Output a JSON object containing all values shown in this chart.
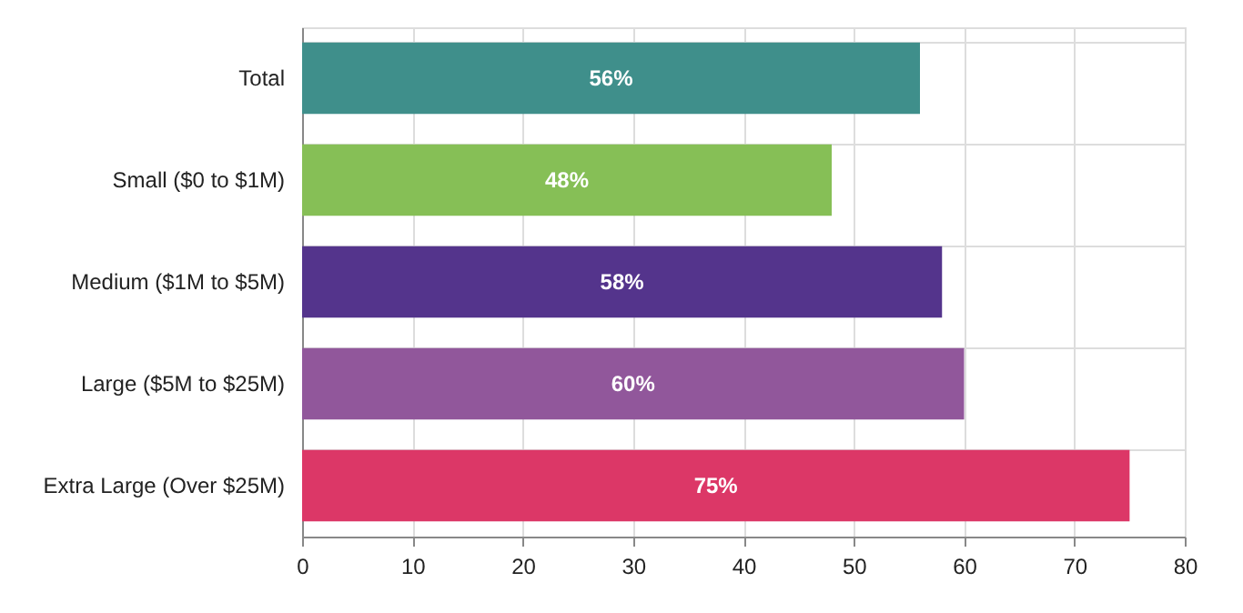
{
  "chart_data": {
    "type": "bar",
    "orientation": "horizontal",
    "categories": [
      "Total",
      "Small ($0 to $1M)",
      "Medium ($1M to $5M)",
      "Large ($5M to $25M)",
      "Extra Large (Over $25M)"
    ],
    "values": [
      56,
      48,
      58,
      60,
      75
    ],
    "colors": [
      "#3f8f8b",
      "#86bf56",
      "#54348c",
      "#91579b",
      "#dc3767"
    ],
    "value_labels": [
      "56%",
      "48%",
      "58%",
      "60%",
      "75%"
    ],
    "xlim": [
      0,
      80
    ],
    "xticks": [
      0,
      10,
      20,
      30,
      40,
      50,
      60,
      70,
      80
    ],
    "grid": true
  }
}
